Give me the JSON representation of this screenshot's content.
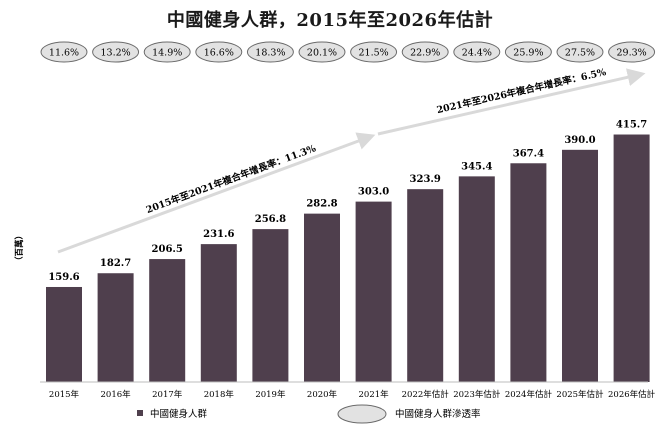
{
  "title": "中國健身人群，2015年至2026年估計",
  "colors": {
    "bar": "#4f3f4d",
    "ellipse_fill": "#e2e2e2",
    "ellipse_stroke": "#6b6b6b",
    "arrow": "#d9d9d9"
  },
  "chart_data": {
    "type": "bar",
    "ylabel": "（百萬）",
    "categories": [
      "2015年",
      "2016年",
      "2017年",
      "2018年",
      "2019年",
      "2020年",
      "2021年",
      "2022年估計",
      "2023年估計",
      "2024年估計",
      "2025年估計",
      "2026年估計"
    ],
    "series": [
      {
        "name": "中國健身人群",
        "values": [
          159.6,
          182.7,
          206.5,
          231.6,
          256.8,
          282.8,
          303.0,
          323.9,
          345.4,
          367.4,
          390.0,
          415.7
        ]
      }
    ],
    "value_labels": [
      "159.6",
      "182.7",
      "206.5",
      "231.6",
      "256.8",
      "282.8",
      "303.0",
      "323.9",
      "345.4",
      "367.4",
      "390.0",
      "415.7"
    ],
    "penetration_rate": {
      "name": "中國健身人群滲透率",
      "labels": [
        "11.6%",
        "13.2%",
        "14.9%",
        "16.6%",
        "18.3%",
        "20.1%",
        "21.5%",
        "22.9%",
        "24.4%",
        "25.9%",
        "27.5%",
        "29.3%"
      ]
    },
    "annotations": [
      {
        "text": "2015年至2021年複合年增長率：11.3%"
      },
      {
        "text": "2021年至2026年複合年增長率：6.5%"
      }
    ],
    "ylim": [
      0,
      430
    ],
    "grid": false,
    "legend": "bottom"
  }
}
